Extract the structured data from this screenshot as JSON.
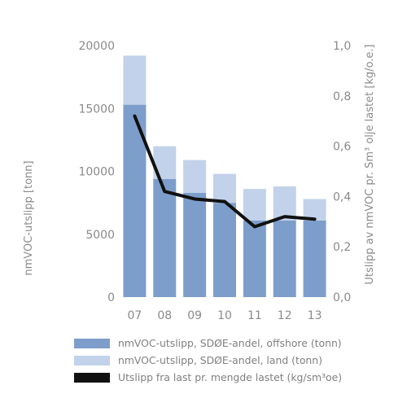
{
  "chart_data": {
    "type": "bar",
    "categories": [
      "07",
      "08",
      "09",
      "10",
      "11",
      "12",
      "13"
    ],
    "series": [
      {
        "name": "nmVOC-utslipp, SDØE-andel, offshore (tonn)",
        "type": "stacked-bar",
        "axis": "left",
        "color": "#7d9ecb",
        "values": [
          15300,
          9400,
          8300,
          7500,
          6100,
          6100,
          6100
        ]
      },
      {
        "name": "nmVOC-utslipp, SDØE-andel, land (tonn)",
        "type": "stacked-bar",
        "axis": "left",
        "color": "#c2d2ea",
        "values": [
          3900,
          2600,
          2600,
          2300,
          2500,
          2700,
          1700
        ]
      },
      {
        "name": "Utslipp fra last pr. mengde lastet (kg/sm³oe)",
        "type": "line",
        "axis": "right",
        "color": "#111111",
        "values": [
          0.72,
          0.42,
          0.39,
          0.38,
          0.28,
          0.32,
          0.31
        ]
      }
    ],
    "ylabel": "nmVOC-utslipp [tonn]",
    "y2label": "Utslipp av nmVOC pr. Sm³ olje lastet [kg/o.e.]",
    "ylim": [
      0,
      20000
    ],
    "y2lim": [
      0,
      1.0
    ],
    "yticks": [
      "0",
      "5000",
      "10000",
      "15000",
      "20000"
    ],
    "y2ticks": [
      "0,0",
      "0,2",
      "0,4",
      "0,6",
      "0,8",
      "1,0"
    ],
    "grid": false,
    "legend_position": "bottom"
  },
  "legend": [
    {
      "label": "nmVOC-utslipp, SDØE-andel, offshore (tonn)",
      "color": "#7d9ecb"
    },
    {
      "label": "nmVOC-utslipp, SDØE-andel, land (tonn)",
      "color": "#c2d2ea"
    },
    {
      "label": "Utslipp fra last pr. mengde lastet (kg/sm³oe)",
      "color": "#111111"
    }
  ]
}
